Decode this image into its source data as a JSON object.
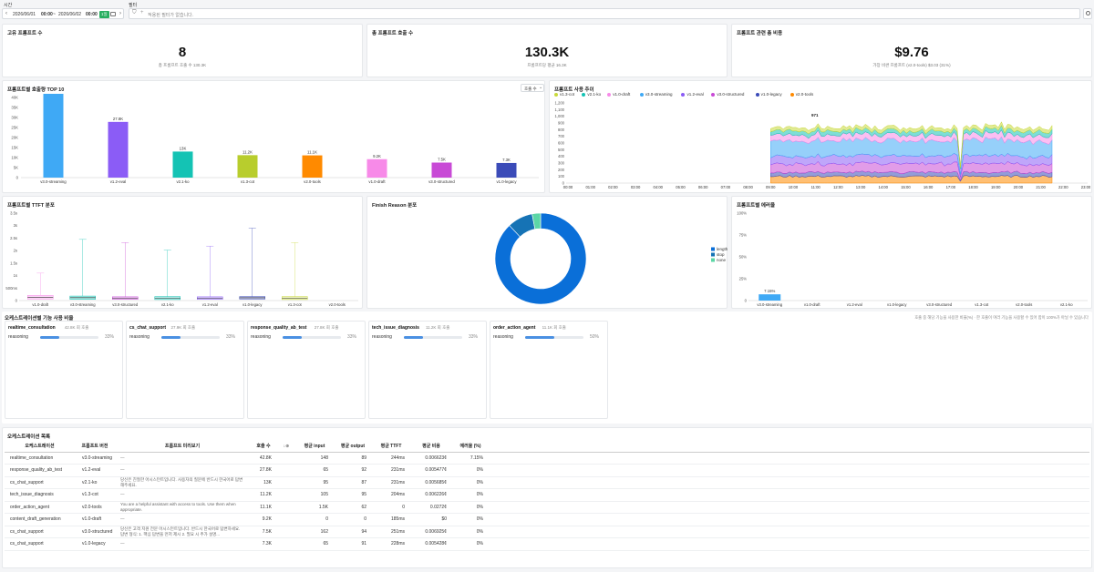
{
  "filters": {
    "time_label": "시간",
    "start_date": "2026/06/01",
    "start_time": "00:00",
    "range_sep": "~",
    "end_date": "2026/06/02",
    "end_time": "00:00",
    "duration_badge": "1일",
    "filter_label": "필터",
    "filter_placeholder": "적용된 필터가 없습니다."
  },
  "stats": [
    {
      "title": "고유 프롬프트 수",
      "value": "8",
      "sub": "총 프롬프트 호출 수 130.3K"
    },
    {
      "title": "총 프롬프트 호출 수",
      "value": "130.3K",
      "sub": "프롬프트당 평균 16.3K"
    },
    {
      "title": "프롬프트 관련 총 비용",
      "value": "$9.76",
      "sub": "가장 비싼 프롬프트 (v2.0-tools) $3.03 (31%)"
    }
  ],
  "top10": {
    "title": "프롬프트별 호출량 TOP 10",
    "sort_label": "호출 수",
    "chart_data": {
      "type": "bar",
      "categories": [
        "v3.0-streaming",
        "v1.2-eval",
        "v2.1-ko",
        "v1.3-cot",
        "v2.0-tools",
        "v1.0-draft",
        "v3.0-structured",
        "v1.0-legacy"
      ],
      "values": [
        42800,
        27800,
        13000,
        11200,
        11100,
        9200,
        7500,
        7300
      ],
      "data_labels": [
        "42.8K",
        "27.8K",
        "13K",
        "11.2K",
        "11.1K",
        "9.2K",
        "7.5K",
        "7.3K"
      ],
      "colors": [
        "#3fa9f5",
        "#8b5cf6",
        "#14c3b4",
        "#b8cd2d",
        "#ff8a00",
        "#f78ae8",
        "#c84ad6",
        "#3b4bb8"
      ],
      "ylim": [
        0,
        40000
      ],
      "yticks": [
        "0",
        "2.5K",
        "5K",
        "7.5K",
        "10K",
        "12.5K",
        "15K",
        "17.5K",
        "20K",
        "22.5K",
        "25K",
        "27.5K",
        "30K",
        "32.5K",
        "35K",
        "37.5K",
        "40K"
      ]
    }
  },
  "usage_trend": {
    "title": "프롬프트 사용 추이",
    "chart_data": {
      "type": "area",
      "legend": [
        {
          "name": "v1.3-cot",
          "color": "#c9d93b"
        },
        {
          "name": "v2.1-ko",
          "color": "#14c3b4"
        },
        {
          "name": "v1.0-draft",
          "color": "#f78ae8"
        },
        {
          "name": "v3.0-streaming",
          "color": "#3fa9f5"
        },
        {
          "name": "v1.2-eval",
          "color": "#8b5cf6"
        },
        {
          "name": "v3.0-structured",
          "color": "#c84ad6"
        },
        {
          "name": "v1.0-legacy",
          "color": "#3b4bb8"
        },
        {
          "name": "v2.0-tools",
          "color": "#ff8a00"
        }
      ],
      "x": [
        "00:00",
        "01:00",
        "02:00",
        "03:00",
        "04:00",
        "05:00",
        "06:00",
        "07:00",
        "08:00",
        "09:00",
        "10:00",
        "11:00",
        "12:00",
        "13:00",
        "14:00",
        "15:00",
        "16:00",
        "17:00",
        "18:00",
        "19:00",
        "20:00",
        "21:00",
        "22:00",
        "23:00"
      ],
      "yticks": [
        "0",
        "100",
        "200",
        "300",
        "400",
        "500",
        "600",
        "700",
        "800",
        "900",
        "1,000",
        "1,100",
        "1,200"
      ],
      "ylim": [
        0,
        1200
      ],
      "active_range": [
        "09:00",
        "21:30"
      ],
      "peak_label": "971",
      "series_mean": [
        50,
        60,
        90,
        230,
        120,
        130,
        60,
        100
      ]
    }
  },
  "ttft": {
    "title": "프롬프트별 TTFT 분포",
    "chart_data": {
      "type": "box",
      "categories": [
        "v1.0-draft",
        "v3.0-streaming",
        "v3.0-structured",
        "v2.1-ko",
        "v1.2-eval",
        "v1.0-legacy",
        "v1.3-cot",
        "v2.0-tools"
      ],
      "max_ms": [
        1100,
        2450,
        2320,
        2020,
        2180,
        2900,
        2320,
        0
      ],
      "box_low_ms": [
        60,
        50,
        50,
        40,
        50,
        60,
        40,
        0
      ],
      "box_high_ms": [
        210,
        180,
        150,
        160,
        150,
        160,
        160,
        0
      ],
      "colors": [
        "#f78ae8",
        "#14c3b4",
        "#c84ad6",
        "#14c3b4",
        "#8b5cf6",
        "#3b4bb8",
        "#c9d93b",
        "#ff8a00"
      ],
      "yticks": [
        "0",
        "500ms",
        "1s",
        "1.5s",
        "2s",
        "2.5s",
        "3s",
        "3.5s"
      ],
      "ylim": [
        0,
        3500
      ]
    }
  },
  "finish_reason": {
    "title": "Finish Reason 분포",
    "chart_data": {
      "type": "pie",
      "labels": [
        "length",
        "stop",
        "none"
      ],
      "values": [
        88,
        9,
        3
      ],
      "colors": [
        "#0a6fd8",
        "#1673b5",
        "#5cd6a6"
      ]
    }
  },
  "error_rate": {
    "title": "프롬프트별 에러율",
    "chart_data": {
      "type": "bar",
      "categories": [
        "v3.0-streaming",
        "v1.0-draft",
        "v1.2-eval",
        "v1.0-legacy",
        "v3.0-structured",
        "v1.3-cot",
        "v2.0-tools",
        "v2.1-ko"
      ],
      "values": [
        7.15,
        0,
        0,
        0,
        0,
        0,
        0,
        0
      ],
      "data_labels": [
        "7.15%",
        "",
        "",
        "",
        "",
        "",
        "",
        ""
      ],
      "yticks": [
        "0",
        "25%",
        "50%",
        "75%",
        "100%"
      ],
      "ylim": [
        0,
        100
      ]
    }
  },
  "orchestration_usage": {
    "title": "오케스트레이션별 기능 사용 비율",
    "note": "호출 중 해당 기능을 사용한 비율(%) · 한 호출이 여러 기능을 사용할 수 있어 합이 100%가 아닐 수 있습니다",
    "cards": [
      {
        "name": "realtime_consultation",
        "calls": "42.8K 회 호출",
        "feature": "reasoning",
        "pct_label": "33%",
        "pct": 33
      },
      {
        "name": "cs_chat_support",
        "calls": "27.9K 회 호출",
        "feature": "reasoning",
        "pct_label": "33%",
        "pct": 33
      },
      {
        "name": "response_quality_ab_test",
        "calls": "27.8K 회 호출",
        "feature": "reasoning",
        "pct_label": "33%",
        "pct": 33
      },
      {
        "name": "tech_issue_diagnosis",
        "calls": "11.2K 회 호출",
        "feature": "reasoning",
        "pct_label": "33%",
        "pct": 33
      },
      {
        "name": "order_action_agent",
        "calls": "11.1K 회 호출",
        "feature": "reasoning",
        "pct_label": "50%",
        "pct": 50
      }
    ]
  },
  "orch_table": {
    "title": "오케스트레이션 목록",
    "headers": [
      "오케스트레이션",
      "프롬프트 버전",
      "프롬프트 미리보기",
      "호출 수",
      "↓⊕",
      "평균 input",
      "평균 output",
      "평균 TTFT",
      "평균 비용",
      "에러율 (%)"
    ],
    "rows": [
      {
        "name": "realtime_consultation",
        "version": "v3.0-streaming",
        "preview": "—",
        "calls": "42.8K",
        "input": "148",
        "output": "89",
        "ttft": "244ms",
        "cost": "0.006623¢",
        "err": "7.15%"
      },
      {
        "name": "response_quality_ab_test",
        "version": "v1.2-eval",
        "preview": "—",
        "calls": "27.8K",
        "input": "65",
        "output": "92",
        "ttft": "231ms",
        "cost": "0.005477¢",
        "err": "0%"
      },
      {
        "name": "cs_chat_support",
        "version": "v2.1-ko",
        "preview": "당신은 친절한 어시스턴트입니다. 사용자의 질문에 반드시 한국어로 답변해주세요.",
        "calls": "13K",
        "input": "95",
        "output": "87",
        "ttft": "231ms",
        "cost": "0.005685¢",
        "err": "0%"
      },
      {
        "name": "tech_issue_diagnosis",
        "version": "v1.3-cot",
        "preview": "—",
        "calls": "11.2K",
        "input": "105",
        "output": "95",
        "ttft": "204ms",
        "cost": "0.006226¢",
        "err": "0%"
      },
      {
        "name": "order_action_agent",
        "version": "v2.0-tools",
        "preview": "You are a helpful assistant with access to tools. Use them when appropriate.",
        "calls": "11.1K",
        "input": "1.5K",
        "output": "62",
        "ttft": "0",
        "cost": "0.0272¢",
        "err": "0%"
      },
      {
        "name": "content_draft_generation",
        "version": "v1.0-draft",
        "preview": "—",
        "calls": "9.2K",
        "input": "0",
        "output": "0",
        "ttft": "185ms",
        "cost": "$0",
        "err": "0%"
      },
      {
        "name": "cs_chat_support",
        "version": "v3.0-structured",
        "preview": "당신은 고객 지원 전문 어시스턴트입니다. 반드시 한국어로 답변하세요. 답변 형식: 1. 핵심 답변을 먼저 제시 2. 필요 시 추가 설명...",
        "calls": "7.5K",
        "input": "162",
        "output": "94",
        "ttft": "251ms",
        "cost": "0.006925¢",
        "err": "0%"
      },
      {
        "name": "cs_chat_support",
        "version": "v1.0-legacy",
        "preview": "—",
        "calls": "7.3K",
        "input": "65",
        "output": "91",
        "ttft": "228ms",
        "cost": "0.005428¢",
        "err": "0%"
      }
    ]
  }
}
